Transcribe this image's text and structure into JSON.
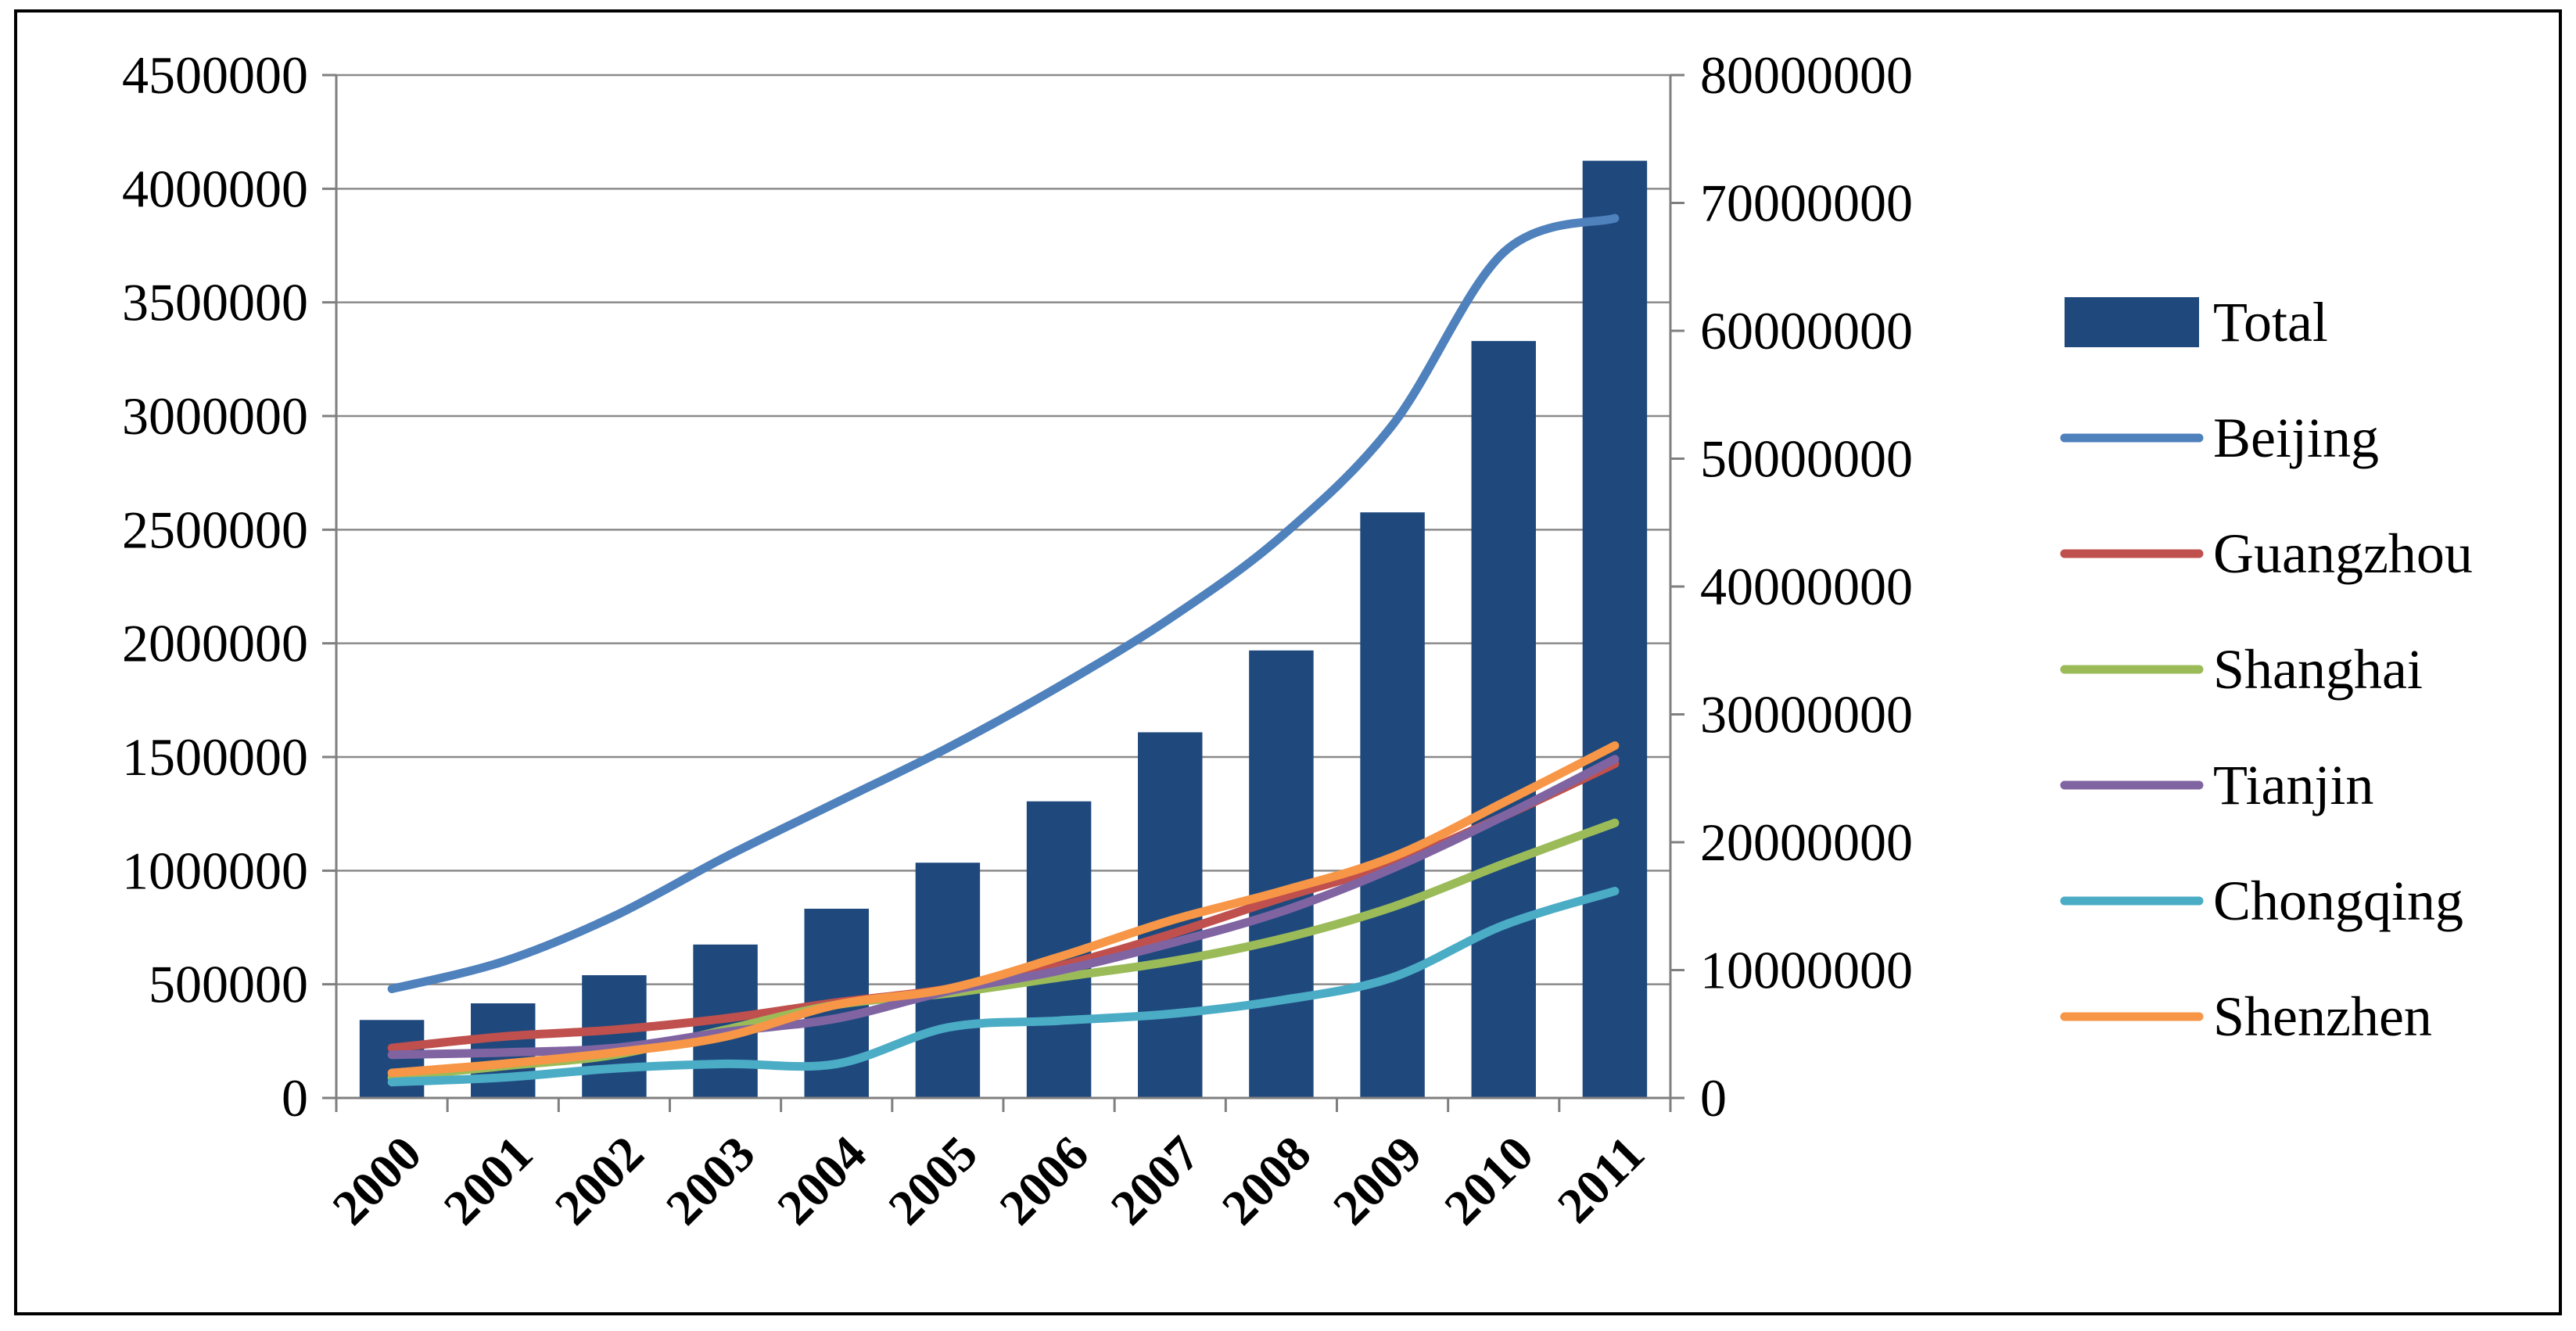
{
  "chart_data": {
    "type": "bar+line",
    "title": "",
    "categories": [
      "2000",
      "2001",
      "2002",
      "2003",
      "2004",
      "2005",
      "2006",
      "2007",
      "2008",
      "2009",
      "2010",
      "2011"
    ],
    "left_axis": {
      "min": 0,
      "max": 4500000,
      "ticks": [
        "0",
        "500000",
        "1000000",
        "1500000",
        "2000000",
        "2500000",
        "3000000",
        "3500000",
        "4000000",
        "4500000"
      ]
    },
    "right_axis": {
      "min": 0,
      "max": 80000000,
      "ticks": [
        "0",
        "10000000",
        "20000000",
        "30000000",
        "40000000",
        "50000000",
        "60000000",
        "70000000",
        "80000000"
      ]
    },
    "grid": true,
    "legend_position": "right",
    "bar_series": {
      "name": "Total",
      "axis": "right",
      "color": "#1f497d",
      "values": [
        6100000,
        7400000,
        9600000,
        12000000,
        14800000,
        18400000,
        23200000,
        28600000,
        35000000,
        45800000,
        59200000,
        73300000
      ]
    },
    "line_series": [
      {
        "name": "Beijing",
        "axis": "left",
        "color": "#4f81bd",
        "values": [
          480000,
          600000,
          800000,
          1060000,
          1300000,
          1540000,
          1810000,
          2110000,
          2470000,
          2960000,
          3720000,
          3870000
        ]
      },
      {
        "name": "Guangzhou",
        "axis": "left",
        "color": "#c0504d",
        "values": [
          220000,
          270000,
          300000,
          350000,
          420000,
          480000,
          580000,
          720000,
          880000,
          1030000,
          1240000,
          1470000
        ]
      },
      {
        "name": "Shanghai",
        "axis": "left",
        "color": "#9bbb59",
        "values": [
          90000,
          140000,
          190000,
          300000,
          410000,
          460000,
          530000,
          600000,
          700000,
          840000,
          1030000,
          1210000
        ]
      },
      {
        "name": "Tianjin",
        "axis": "left",
        "color": "#8064a2",
        "values": [
          190000,
          200000,
          220000,
          290000,
          350000,
          470000,
          560000,
          680000,
          820000,
          1010000,
          1240000,
          1490000
        ]
      },
      {
        "name": "Chongqing",
        "axis": "left",
        "color": "#4bacc6",
        "values": [
          70000,
          90000,
          130000,
          150000,
          150000,
          310000,
          340000,
          370000,
          430000,
          530000,
          760000,
          910000
        ]
      },
      {
        "name": "Shenzhen",
        "axis": "left",
        "color": "#f79646",
        "values": [
          110000,
          150000,
          200000,
          270000,
          410000,
          480000,
          620000,
          780000,
          910000,
          1060000,
          1300000,
          1550000
        ]
      }
    ]
  }
}
